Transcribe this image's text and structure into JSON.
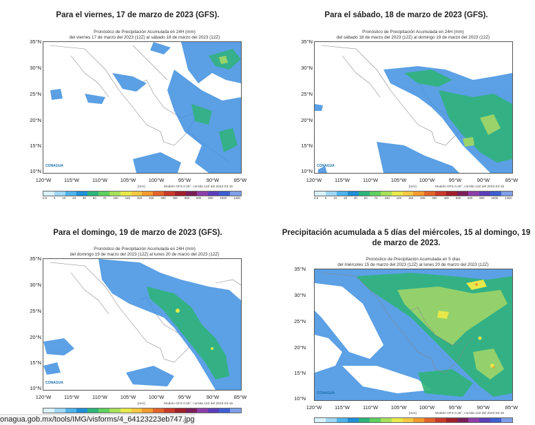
{
  "panels": [
    {
      "title": "Para el viernes, 17 de marzo de 2023 (GFS).",
      "subtitle1": "Pronóstico de Precipitación Acumulada en 24H (mm)",
      "subtitle2": "del viernes 17 de marzo del 2023 (12Z) al sábado  18 de marzo del 2023 (12Z)"
    },
    {
      "title": "Para el sábado, 18 de marzo de 2023 (GFS).",
      "subtitle1": "Pronóstico de Precipitación Acumulada en 24H (mm)",
      "subtitle2": "del sábado 18 de marzo del 2023 (12Z) al domingo  19 de marzo del 2023 (12Z)"
    },
    {
      "title": "Para el domingo, 19 de marzo de 2023 (GFS).",
      "subtitle1": "Pronóstico de Precipitación Acumulada en 24H (mm)",
      "subtitle2": "del domingo 19 de marzo del 2023 (12Z) al lunes  20 de marzo del 2023 (12Z)"
    },
    {
      "title": "Precipitación acumulada a 5 días del miércoles, 15 al domingo, 19 de marzo de 2023.",
      "subtitle1": "Pronóstico de Precipitación Acumulada en 5 días",
      "subtitle2": "del miércoles 15 de marzo del 2023 (12Z) al lunes  20 de marzo del 2023 (12Z)"
    }
  ],
  "lat_labels": [
    "35°N",
    "30°N",
    "25°N",
    "20°N",
    "15°N",
    "10°N"
  ],
  "lon_labels": [
    "120°W",
    "115°W",
    "110°W",
    "105°W",
    "100°W",
    "95°W",
    "90°W",
    "85°W"
  ],
  "model_credit": "Modelo GFS 0.25°, corrida 12Z del 2023-03-15",
  "units_label": "[mm]",
  "logo_text": "CONAGUA",
  "colorbar_labels": [
    "0.5",
    "5",
    "10",
    "20",
    "30",
    "50",
    "70",
    "100",
    "125",
    "150",
    "200",
    "300",
    "400",
    "500",
    "600",
    "800",
    "1000",
    "1200"
  ],
  "colorbar_colors": [
    "#d9f2ff",
    "#9fd8f5",
    "#4fb3ea",
    "#1f8fd6",
    "#2eb37a",
    "#5fcf5f",
    "#a8e05a",
    "#e8e84a",
    "#f5c842",
    "#f29a2e",
    "#e0642a",
    "#c83a2a",
    "#a0202a",
    "#7a1f5a",
    "#8d3fa8",
    "#5b3fb8",
    "#3f5fd0",
    "#7f9fe8"
  ],
  "url_text": "onagua.gob.mx/tools/IMG/visforms/4_64123223eb747.jpg"
}
